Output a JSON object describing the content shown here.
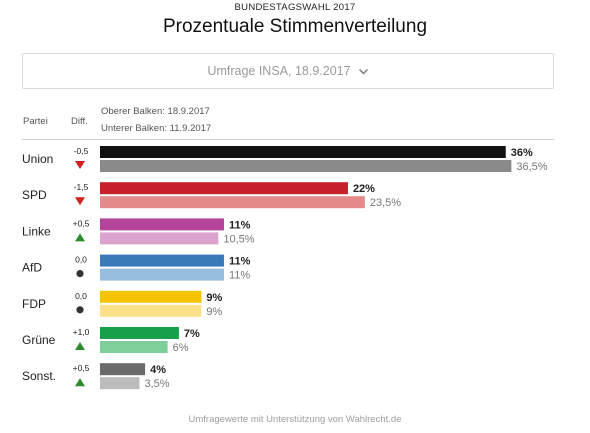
{
  "header": {
    "kicker": "BUNDESTAGSWAHL 2017",
    "title": "Prozentuale Stimmenverteilung"
  },
  "selector": {
    "label": "Umfrage INSA, 18.9.2017",
    "icon": "chevron-down-icon"
  },
  "table_header": {
    "party_label": "Partei",
    "diff_label": "Diff.",
    "legend_upper": "Oberer Balken: 18.9.2017",
    "legend_lower": "Unterer Balken: 11.9.2017"
  },
  "footer": "Umfragewerte mit Unterstützung von Wahlrecht.de",
  "colors": {
    "up": "#2e8b2e",
    "down": "#d42020",
    "neutral": "#333333"
  },
  "chart_data": {
    "type": "bar",
    "orientation": "horizontal",
    "categories": [
      "Union",
      "SPD",
      "Linke",
      "AfD",
      "FDP",
      "Grüne",
      "Sonst."
    ],
    "series": [
      {
        "name": "Oberer Balken: 18.9.2017",
        "values": [
          36,
          22,
          11,
          11,
          9,
          7,
          4
        ],
        "labels": [
          "36%",
          "22%",
          "11%",
          "11%",
          "9%",
          "7%",
          "4%"
        ]
      },
      {
        "name": "Unterer Balken: 11.9.2017",
        "values": [
          36.5,
          23.5,
          10.5,
          11,
          9,
          6,
          3.5
        ],
        "labels": [
          "36,5%",
          "23,5%",
          "10,5%",
          "11%",
          "9%",
          "6%",
          "3,5%"
        ]
      }
    ],
    "diff": {
      "labels": [
        "-0,5",
        "-1,5",
        "+0,5",
        "0,0",
        "0,0",
        "+1,0",
        "+0,5"
      ],
      "direction": [
        "down",
        "down",
        "up",
        "neutral",
        "neutral",
        "up",
        "up"
      ]
    },
    "colors": {
      "upper": [
        "#111111",
        "#c8202a",
        "#b5459a",
        "#3a7ab8",
        "#f5c400",
        "#16a049",
        "#6b6b6b"
      ],
      "lower": [
        "#8a8a8a",
        "#e58a8a",
        "#dca3cf",
        "#97bedf",
        "#fbe28a",
        "#7fcf9b",
        "#bcbcbc"
      ]
    },
    "xlim": [
      0,
      37
    ],
    "grid": false,
    "legend": "top-left"
  }
}
